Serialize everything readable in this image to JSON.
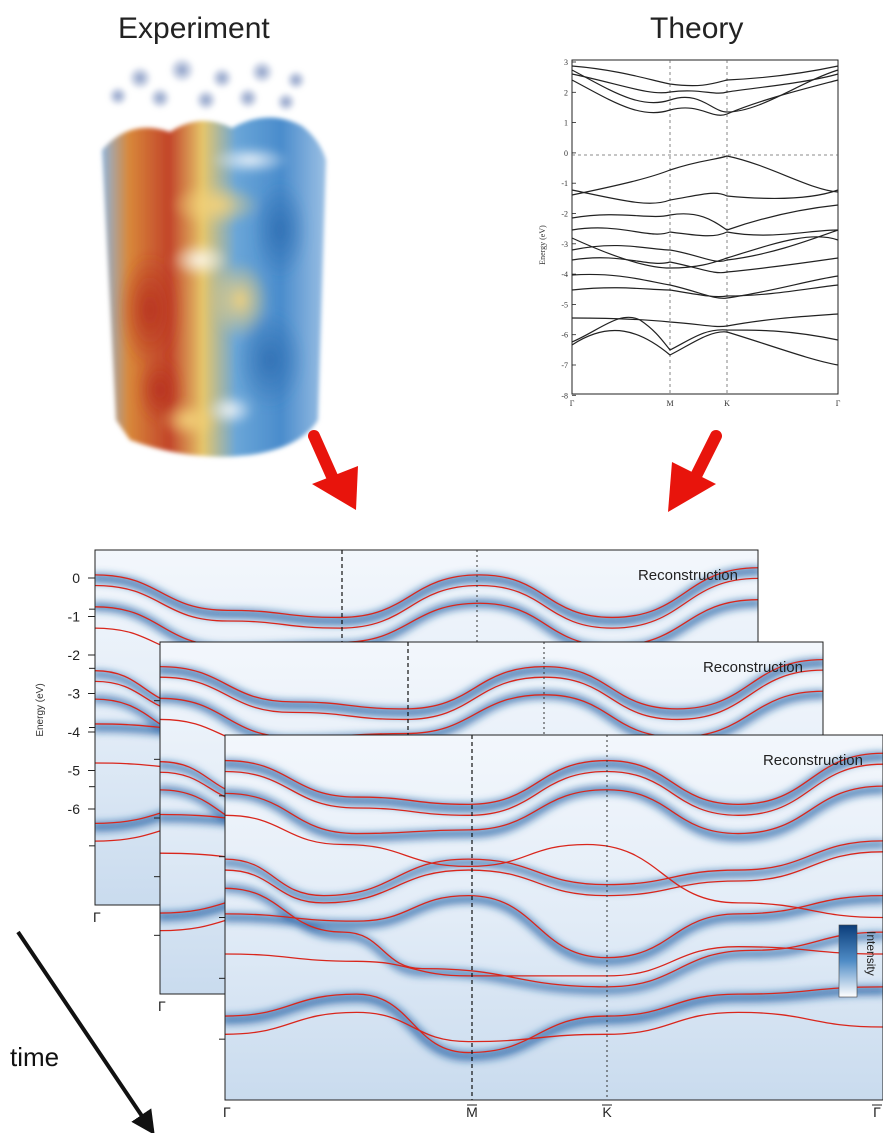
{
  "headings": {
    "experiment": "Experiment",
    "theory": "Theory"
  },
  "theory_plot": {
    "ylabel": "Energy (eV)",
    "yticks": [
      "3",
      "2",
      "1",
      "0",
      "-1",
      "-2",
      "-3",
      "-4",
      "-5",
      "-6",
      "-7",
      "-8"
    ],
    "xticks": [
      "Γ",
      "M",
      "K",
      "Γ"
    ]
  },
  "reconstruction": {
    "panel_label": "Reconstruction",
    "ylabel": "Energy (eV)",
    "yticks": [
      "0",
      "-1",
      "-2",
      "-3",
      "-4",
      "-5",
      "-6"
    ],
    "xticks": [
      "Γ",
      "M",
      "K",
      "Γ"
    ],
    "colorbar_label": "Intensity"
  },
  "time_label": "time",
  "colors": {
    "arrow": "#e8140c",
    "fitted_bands": "#d9261c",
    "intensity_high": "#0b3d7a",
    "intensity_low": "#ffffff"
  }
}
